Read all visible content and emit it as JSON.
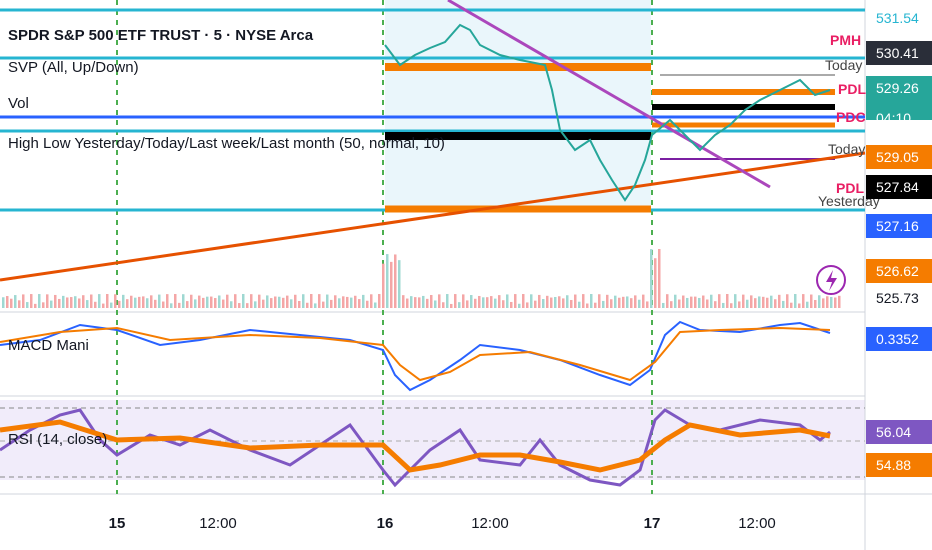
{
  "header": {
    "title": "SPDR S&P 500 ETF TRUST · 5 · NYSE Arca"
  },
  "indicators": [
    "SVP (All, Up/Down)",
    "Vol",
    "High Low Yesterday/Today/Last week/Last month (50, normal, 10)"
  ],
  "panes": {
    "macd": "MACD Mani",
    "rsi": "RSI (14, close)"
  },
  "chart_labels": {
    "pmh": "PMH",
    "today_1": "Today",
    "pdl_1": "PDL",
    "pdc": "PDC",
    "today_2": "Today",
    "pdl_2": "PDL",
    "yesterday": "Yesterday"
  },
  "price_scale": [
    "531.54",
    "530.41",
    "529.26",
    "04:10",
    "529.05",
    "527.84",
    "527.16",
    "526.62",
    "525.73",
    "0.3352",
    "56.04",
    "54.88"
  ],
  "time_axis": [
    "15",
    "12:00",
    "16",
    "12:00",
    "17",
    "12:00"
  ]
}
